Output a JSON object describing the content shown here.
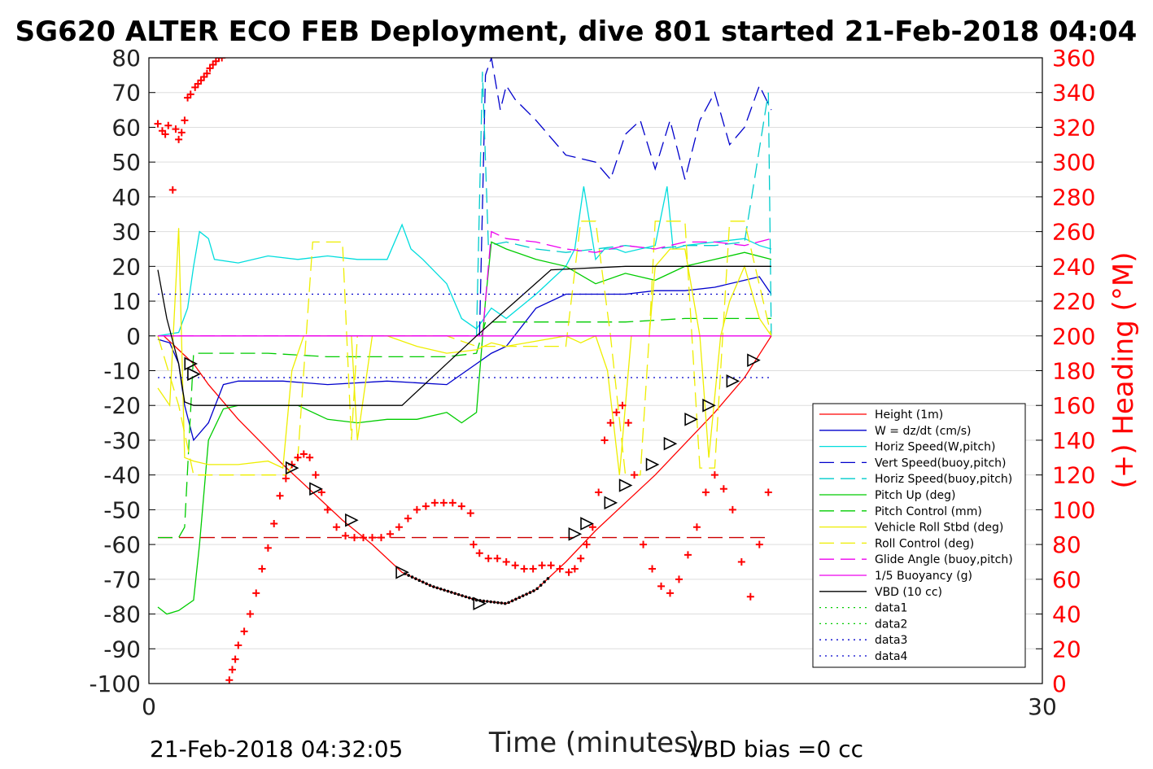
{
  "chart_data": {
    "type": "line",
    "title": "SG620 ALTER ECO FEB Deployment, dive 801 started 21-Feb-2018 04:04",
    "xlabel": "Time (minutes)",
    "ylabel": "",
    "ylabel_right": "(+) Heading (°M)",
    "xlim": [
      0,
      30
    ],
    "ylim": [
      -100,
      80
    ],
    "ylim_right": [
      0,
      360
    ],
    "x_ticks": [
      "0",
      "30"
    ],
    "y_ticks": [
      "80",
      "70",
      "60",
      "50",
      "40",
      "30",
      "20",
      "10",
      "0",
      "-10",
      "-20",
      "-30",
      "-40",
      "-50",
      "-60",
      "-70",
      "-80",
      "-90",
      "-100"
    ],
    "y_ticks_right": [
      "360",
      "340",
      "320",
      "300",
      "280",
      "260",
      "240",
      "220",
      "200",
      "180",
      "160",
      "140",
      "120",
      "100",
      "80",
      "60",
      "40",
      "20",
      "0"
    ],
    "grid": true,
    "legend_position": "bottom-right",
    "footer_left": "21-Feb-2018 04:32:05",
    "footer_right": "VBD bias =0 cc",
    "series": [
      {
        "name": "Height (1m)",
        "color": "#ff0000",
        "dash": "solid",
        "x": [
          0.5,
          1.0,
          1.5,
          2.0,
          3.0,
          4.5,
          5.5,
          6.5,
          7.5,
          8.5,
          9.5,
          11.0,
          12.0,
          13.0,
          14.0,
          15.0,
          16.0,
          17.0,
          18.0,
          19.0,
          20.0,
          20.9
        ],
        "y": [
          0,
          -4,
          -8,
          -14,
          -24,
          -37,
          -45,
          -53,
          -60,
          -68,
          -72,
          -76,
          -77,
          -73,
          -65,
          -56,
          -48,
          -40,
          -31,
          -22,
          -12,
          0
        ]
      },
      {
        "name": "W = dz/dt (cm/s)",
        "color": "#0000cc",
        "dash": "solid",
        "x": [
          0.3,
          0.7,
          1.0,
          1.2,
          1.5,
          2.0,
          2.5,
          3.0,
          4.5,
          6.0,
          8.0,
          10.0,
          11.0,
          11.5,
          12.0,
          13.0,
          14.0,
          15.0,
          16.0,
          17.0,
          18.0,
          19.0,
          20.0,
          20.5,
          20.9
        ],
        "y": [
          -1,
          -2,
          -8,
          -20,
          -30,
          -25,
          -14,
          -13,
          -13,
          -14,
          -13,
          -14,
          -8,
          -5,
          -3,
          8,
          12,
          12,
          12,
          13,
          13,
          14,
          16,
          17,
          12
        ]
      },
      {
        "name": "Horiz Speed(W,pitch)",
        "color": "#00dddd",
        "dash": "solid",
        "x": [
          0.3,
          1.0,
          1.3,
          1.5,
          1.7,
          2.0,
          2.2,
          3.0,
          4.0,
          5.0,
          6.0,
          7.0,
          8.0,
          8.5,
          8.8,
          9.2,
          10.0,
          10.5,
          11.0,
          11.5,
          12.0,
          13.0,
          14.0,
          14.3,
          14.6,
          15.0,
          15.3,
          15.7,
          16.0,
          17.0,
          17.4,
          17.6,
          18.0,
          19.0,
          20.0,
          20.5,
          20.9
        ],
        "y": [
          0,
          1,
          8,
          20,
          30,
          28,
          22,
          21,
          23,
          22,
          23,
          22,
          22,
          32,
          25,
          22,
          15,
          5,
          2,
          8,
          5,
          12,
          20,
          25,
          43,
          22,
          25,
          25,
          24,
          26,
          43,
          25,
          26,
          27,
          28,
          26,
          25
        ]
      },
      {
        "name": "Vert Speed(buoy,pitch)",
        "color": "#0000cc",
        "dash": "long",
        "x": [
          11.1,
          11.3,
          11.5,
          11.8,
          12.0,
          12.3,
          13.0,
          14.0,
          15.0,
          15.5,
          16.0,
          16.5,
          17.0,
          17.5,
          18.0,
          18.5,
          19.0,
          19.5,
          20.0,
          20.5,
          20.9
        ],
        "y": [
          0,
          75,
          80,
          65,
          72,
          68,
          62,
          52,
          50,
          45,
          58,
          62,
          48,
          62,
          45,
          62,
          70,
          55,
          60,
          72,
          65
        ]
      },
      {
        "name": "Horiz Speed(buoy,pitch)",
        "color": "#00cccc",
        "dash": "long",
        "x": [
          11.0,
          11.2,
          11.4,
          12.0,
          13.0,
          14.0,
          15.0,
          16.0,
          17.0,
          18.0,
          19.0,
          20.0,
          20.8,
          20.9
        ],
        "y": [
          0,
          76,
          26,
          27,
          25,
          24,
          25,
          26,
          25,
          26,
          26,
          27,
          70,
          0
        ]
      },
      {
        "name": "Pitch Up (deg)",
        "color": "#00cc00",
        "dash": "solid",
        "x": [
          0.3,
          0.6,
          1.0,
          1.5,
          1.7,
          2.0,
          2.5,
          3.0,
          4.0,
          5.0,
          6.0,
          7.0,
          8.0,
          9.0,
          10.0,
          10.5,
          11.0,
          11.3,
          11.5,
          12.0,
          13.0,
          14.0,
          15.0,
          16.0,
          17.0,
          18.0,
          19.0,
          20.0,
          20.9
        ],
        "y": [
          -78,
          -80,
          -79,
          -76,
          -60,
          -30,
          -21,
          -20,
          -20,
          -20,
          -24,
          -25,
          -24,
          -24,
          -22,
          -25,
          -22,
          10,
          27,
          25,
          22,
          20,
          15,
          18,
          16,
          20,
          22,
          24,
          22
        ]
      },
      {
        "name": "Pitch Control (mm)",
        "color": "#00cc00",
        "dash": "long",
        "x": [
          0.3,
          1.0,
          1.2,
          1.5,
          2.0,
          4.0,
          6.0,
          8.0,
          10.0,
          11.0,
          11.3,
          12.0,
          14.0,
          16.0,
          18.0,
          20.0,
          20.9
        ],
        "y": [
          -58,
          -58,
          -55,
          -5,
          -5,
          -5,
          -6,
          -6,
          -6,
          -5,
          4,
          4,
          4,
          4,
          5,
          5,
          5
        ]
      },
      {
        "name": "Vehicle Roll Stbd (deg)",
        "color": "#eeee00",
        "dash": "solid",
        "x": [
          0.3,
          0.7,
          1.0,
          1.2,
          1.5,
          2.0,
          3.0,
          4.0,
          4.5,
          4.8,
          5.2,
          5.5,
          6.0,
          6.5,
          6.8,
          7.0,
          7.5,
          8.0,
          9.0,
          10.0,
          11.0,
          11.5,
          12.0,
          14.0,
          14.5,
          15.0,
          15.4,
          15.8,
          16.2,
          16.5,
          16.8,
          17.0,
          17.5,
          18.0,
          18.5,
          18.8,
          19.2,
          19.5,
          20.0,
          20.5,
          20.9
        ],
        "y": [
          -15,
          -20,
          31,
          -35,
          -36,
          -37,
          -37,
          -36,
          -38,
          -10,
          0,
          0,
          0,
          0,
          0,
          -30,
          0,
          0,
          -3,
          -5,
          -4,
          -2,
          -3,
          0,
          -2,
          0,
          -10,
          -40,
          0,
          0,
          0,
          20,
          25,
          25,
          0,
          -35,
          0,
          10,
          20,
          5,
          0
        ]
      },
      {
        "name": "Roll Control (deg)",
        "color": "#eeee00",
        "dash": "long",
        "x": [
          0.3,
          1.0,
          1.5,
          2.0,
          4.0,
          4.6,
          5.0,
          5.5,
          6.0,
          6.5,
          6.8,
          7.0,
          8.0,
          10.0,
          11.0,
          12.0,
          14.0,
          14.5,
          15.0,
          15.5,
          16.0,
          16.5,
          16.8,
          17.0,
          17.5,
          18.0,
          18.5,
          19.0,
          19.5,
          20.0,
          20.9
        ],
        "y": [
          0,
          -20,
          -40,
          -40,
          -40,
          -40,
          -35,
          27,
          27,
          27,
          -30,
          0,
          0,
          0,
          -3,
          -3,
          -3,
          33,
          33,
          0,
          -40,
          -40,
          0,
          33,
          33,
          33,
          -38,
          -38,
          33,
          33,
          0
        ]
      },
      {
        "name": "Glide Angle (buoy,pitch)",
        "color": "#ee00ee",
        "dash": "long",
        "x": [
          0.3,
          5.0,
          10.0,
          11.2,
          11.5,
          12.0,
          13.0,
          14.0,
          15.0,
          16.0,
          17.0,
          18.0,
          19.0,
          20.0,
          20.9
        ],
        "y": [
          0,
          0,
          0,
          0,
          30,
          28,
          27,
          25,
          24,
          26,
          25,
          27,
          27,
          26,
          28
        ]
      },
      {
        "name": "1/5 Buoyancy (g)",
        "color": "#ee00ee",
        "dash": "solid",
        "x": [
          0.3,
          5.0,
          10.0,
          11.0,
          20.9
        ],
        "y": [
          0,
          0,
          0,
          0,
          0
        ]
      },
      {
        "name": "VBD (10 cc)",
        "color": "#000000",
        "dash": "solid",
        "x": [
          0.3,
          0.6,
          1.0,
          1.2,
          1.5,
          3.0,
          6.0,
          8.5,
          11.0,
          13.5,
          16.0,
          20.9
        ],
        "y": [
          19,
          5,
          -8,
          -19,
          -20,
          -20,
          -20,
          -20,
          0,
          19,
          20,
          20
        ]
      },
      {
        "name": "data1",
        "color": "#00cc00",
        "dash": "dot",
        "x": [],
        "y": []
      },
      {
        "name": "data2",
        "color": "#00cc00",
        "dash": "dot",
        "x": [],
        "y": []
      },
      {
        "name": "data3",
        "color": "#0000cc",
        "dash": "dot",
        "x": [
          0.3,
          20.9
        ],
        "y": [
          12,
          12
        ]
      },
      {
        "name": "data4",
        "color": "#0000cc",
        "dash": "dot",
        "x": [
          0.3,
          20.9
        ],
        "y": [
          -12,
          -12
        ]
      }
    ],
    "reference_lines": [
      {
        "color": "#cc0000",
        "dash": "long",
        "y": -58,
        "x": [
          0.3,
          20.9
        ]
      }
    ],
    "heading_points": {
      "color": "#ff0000",
      "marker": "+",
      "axis": "right",
      "x": [
        0.3,
        0.45,
        0.55,
        0.65,
        0.8,
        0.9,
        1.0,
        1.1,
        1.2,
        1.3,
        1.4,
        1.55,
        1.65,
        1.75,
        1.85,
        1.95,
        2.05,
        2.15,
        2.25,
        2.35,
        2.45,
        2.55,
        2.65,
        2.7,
        2.8,
        2.9,
        3.0,
        3.2,
        3.4,
        3.6,
        3.8,
        4.0,
        4.2,
        4.4,
        4.6,
        4.8,
        5.0,
        5.2,
        5.4,
        5.6,
        5.8,
        6.0,
        6.3,
        6.6,
        6.9,
        7.2,
        7.5,
        7.8,
        8.1,
        8.4,
        8.7,
        9.0,
        9.3,
        9.6,
        9.9,
        10.2,
        10.5,
        10.8,
        10.9,
        11.1,
        11.4,
        11.7,
        12.0,
        12.3,
        12.6,
        12.9,
        13.2,
        13.5,
        13.8,
        14.1,
        14.3,
        14.5,
        14.7,
        14.9,
        15.1,
        15.3,
        15.5,
        15.7,
        15.9,
        16.1,
        16.3,
        16.6,
        16.9,
        17.2,
        17.5,
        17.8,
        18.1,
        18.4,
        18.7,
        19.0,
        19.3,
        19.6,
        19.9,
        20.2,
        20.5,
        20.8
      ],
      "y": [
        322,
        318,
        316,
        321,
        284,
        319,
        313,
        317,
        324,
        337,
        339,
        343,
        345,
        347,
        349,
        351,
        354,
        356,
        358,
        360,
        360,
        362,
        364,
        2,
        8,
        14,
        22,
        30,
        40,
        52,
        66,
        78,
        92,
        108,
        118,
        126,
        130,
        132,
        130,
        120,
        110,
        100,
        90,
        85,
        84,
        84,
        84,
        84,
        86,
        90,
        95,
        100,
        102,
        104,
        104,
        104,
        102,
        98,
        80,
        75,
        72,
        72,
        70,
        68,
        66,
        66,
        68,
        68,
        66,
        64,
        66,
        72,
        80,
        90,
        110,
        140,
        150,
        156,
        160,
        150,
        120,
        80,
        66,
        56,
        52,
        60,
        74,
        90,
        110,
        120,
        112,
        100,
        70,
        50,
        80,
        110
      ]
    },
    "track_triangles": {
      "color": "#000000",
      "marker": "triangle-right",
      "x": [
        1.4,
        1.5,
        4.8,
        5.6,
        6.8,
        8.5,
        11.1,
        14.3,
        14.7,
        15.5,
        16.0,
        16.9,
        17.5,
        18.2,
        18.8,
        19.6,
        20.3
      ],
      "y": [
        -8,
        -11,
        -38,
        -44,
        -53,
        -68,
        -77,
        -57,
        -54,
        -48,
        -43,
        -37,
        -31,
        -24,
        -20,
        -13,
        -7
      ]
    }
  }
}
